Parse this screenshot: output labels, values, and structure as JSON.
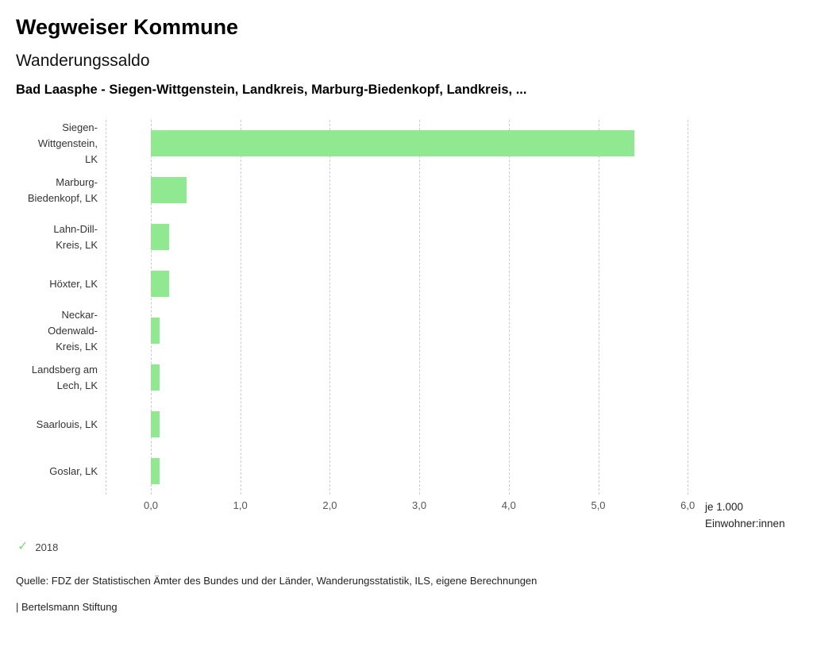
{
  "header": {
    "app_title": "Wegweiser Kommune",
    "chart_title": "Wanderungssaldo",
    "chart_subtitle": "Bad Laasphe - Siegen-Wittgenstein, Landkreis, Marburg-Biedenkopf, Landkreis, ..."
  },
  "chart_data": {
    "type": "bar",
    "orientation": "horizontal",
    "title": "Wanderungssaldo",
    "categories": [
      "Siegen-Wittgenstein, LK",
      "Marburg-Biedenkopf, LK",
      "Lahn-Dill-Kreis, LK",
      "Höxter, LK",
      "Neckar-Odenwald-Kreis, LK",
      "Landsberg am Lech, LK",
      "Saarlouis, LK",
      "Goslar, LK"
    ],
    "category_lines": [
      [
        "Siegen-",
        "Wittgenstein,",
        "LK"
      ],
      [
        "Marburg-",
        "Biedenkopf, LK"
      ],
      [
        "Lahn-Dill-",
        "Kreis, LK"
      ],
      [
        "Höxter, LK"
      ],
      [
        "Neckar-",
        "Odenwald-",
        "Kreis, LK"
      ],
      [
        "Landsberg am",
        "Lech, LK"
      ],
      [
        "Saarlouis, LK"
      ],
      [
        "Goslar, LK"
      ]
    ],
    "series": [
      {
        "name": "2018",
        "values": [
          5.4,
          0.4,
          0.2,
          0.2,
          0.1,
          0.1,
          0.1,
          0.1
        ]
      }
    ],
    "xlim": [
      0,
      6
    ],
    "x_ticks": [
      "0,0",
      "1,0",
      "2,0",
      "3,0",
      "4,0",
      "5,0",
      "6,0"
    ],
    "x_unit_label": "je 1.000 Einwohner:innen",
    "grid": "dashed-vertical",
    "bar_color": "#90e890",
    "legend_position": "bottom-left"
  },
  "legend": {
    "check_icon": "✓",
    "label": "2018"
  },
  "footer": {
    "source": "Quelle: FDZ der Statistischen Ämter des Bundes und der Länder, Wanderungsstatistik, ILS, eigene Berechnungen",
    "branding": "| Bertelsmann Stiftung"
  }
}
